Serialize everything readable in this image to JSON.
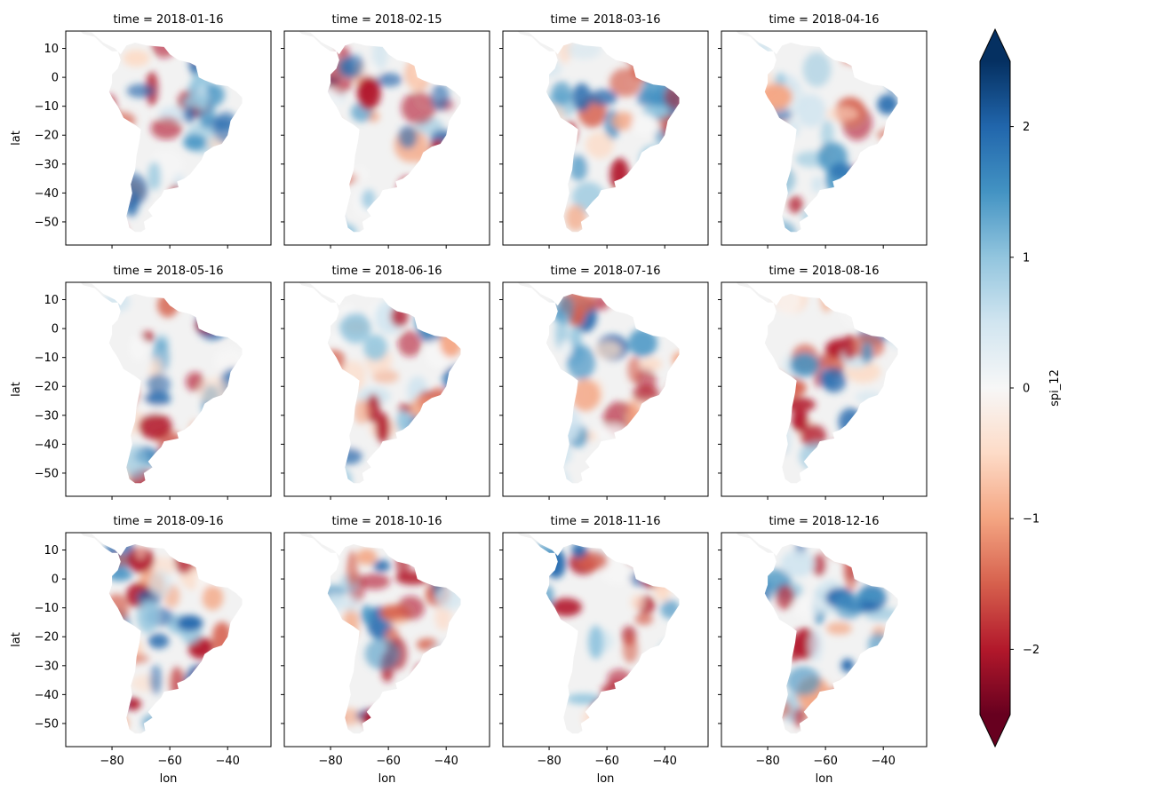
{
  "chart_data": {
    "type": "heatmap",
    "variable": "spi_12",
    "panels": [
      {
        "title": "time = 2018-01-16"
      },
      {
        "title": "time = 2018-02-15"
      },
      {
        "title": "time = 2018-03-16"
      },
      {
        "title": "time = 2018-04-16"
      },
      {
        "title": "time = 2018-05-16"
      },
      {
        "title": "time = 2018-06-16"
      },
      {
        "title": "time = 2018-07-16"
      },
      {
        "title": "time = 2018-08-16"
      },
      {
        "title": "time = 2018-09-16"
      },
      {
        "title": "time = 2018-10-16"
      },
      {
        "title": "time = 2018-11-16"
      },
      {
        "title": "time = 2018-12-16"
      }
    ],
    "xlabel": "lon",
    "ylabel": "lat",
    "xlim": [
      -96,
      -25
    ],
    "ylim": [
      -58,
      16
    ],
    "x_ticks": [
      -80,
      -60,
      -40
    ],
    "x_tick_labels": [
      "−80",
      "−60",
      "−40"
    ],
    "y_ticks": [
      10,
      0,
      -10,
      -20,
      -30,
      -40,
      -50
    ],
    "y_tick_labels": [
      "10",
      "0",
      "−10",
      "−20",
      "−30",
      "−40",
      "−50"
    ],
    "colorbar": {
      "label": "spi_12",
      "range": [
        -2.5,
        2.5
      ],
      "ticks": [
        2,
        1,
        0,
        -1,
        -2
      ],
      "tick_labels": [
        "2",
        "1",
        "0",
        "−1",
        "−2"
      ],
      "extend": "both",
      "colormap": "RdBu",
      "colors": [
        "#67001f",
        "#b2182b",
        "#d6604d",
        "#f4a582",
        "#fddbc7",
        "#f7f7f7",
        "#d1e5f0",
        "#92c5de",
        "#4393c3",
        "#2166ac",
        "#053061"
      ]
    },
    "grid": false
  }
}
